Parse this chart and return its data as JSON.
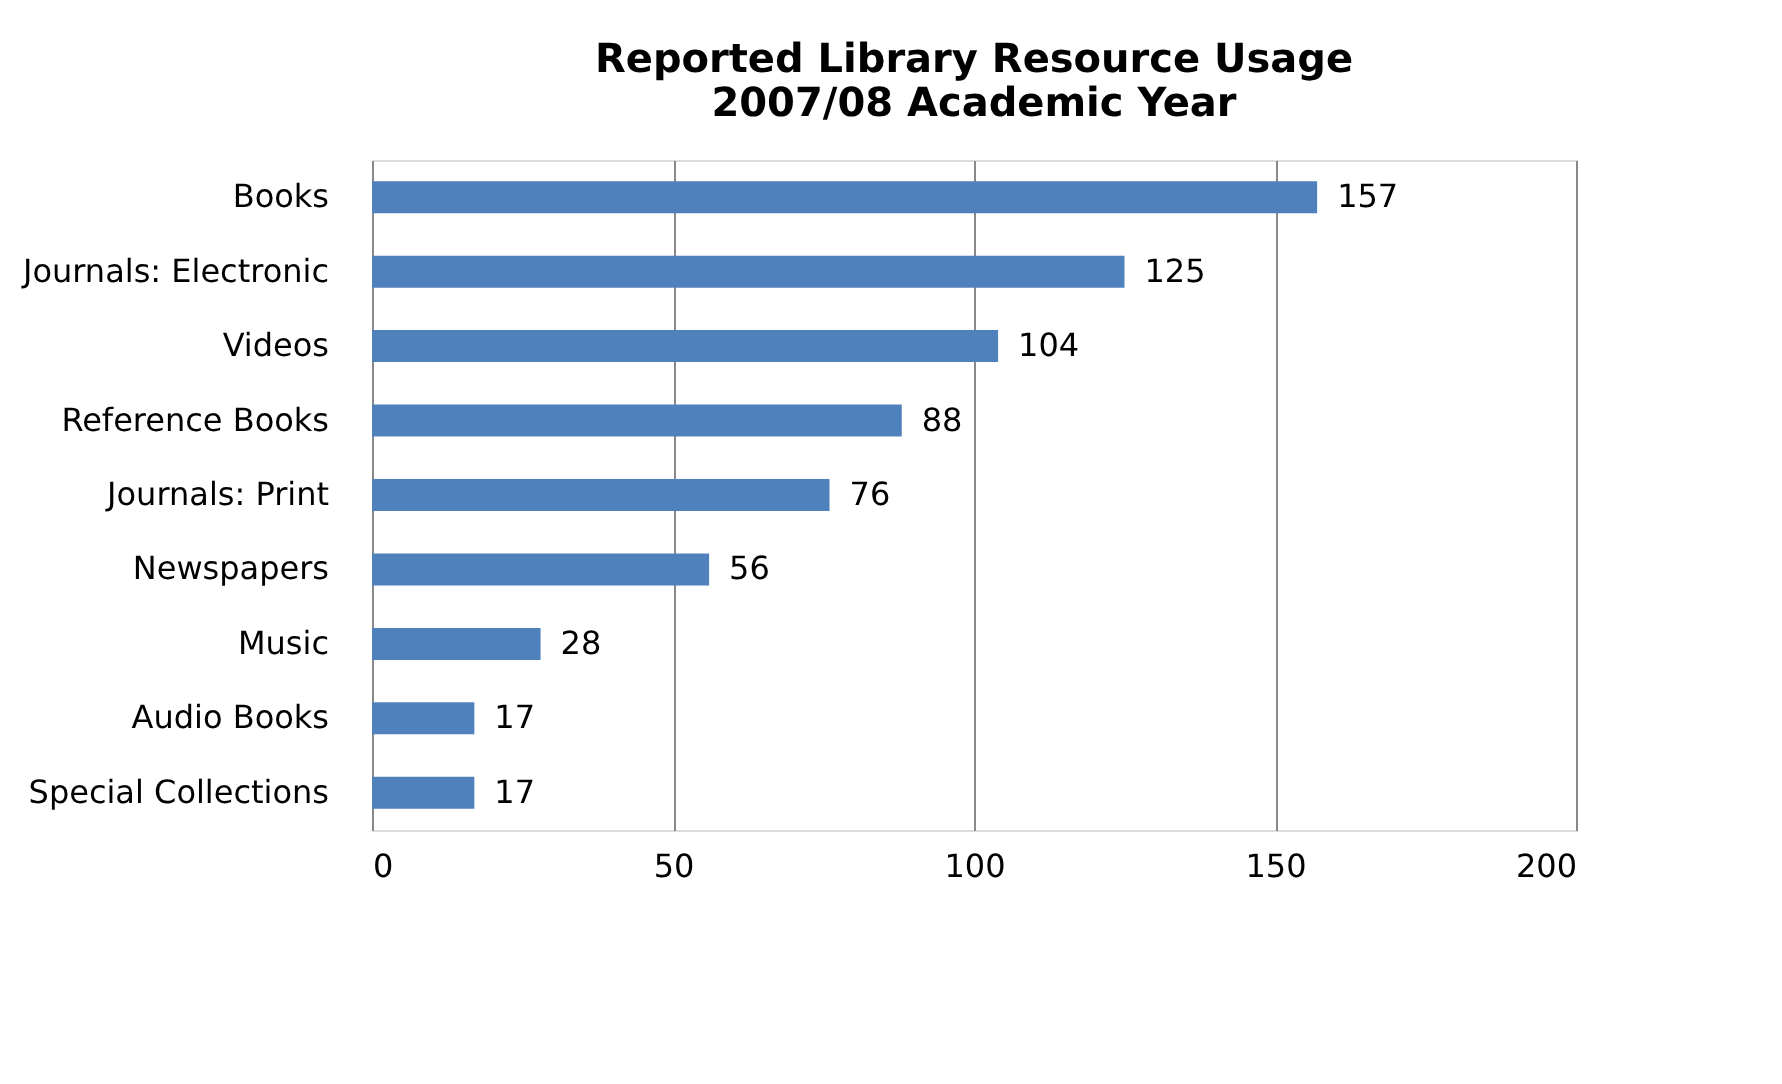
{
  "chart_data": {
    "type": "bar",
    "orientation": "horizontal",
    "title": [
      "Reported  Library Resource Usage",
      "2007/08 Academic Year"
    ],
    "categories": [
      "Books",
      "Journals: Electronic",
      "Videos",
      "Reference Books",
      "Journals: Print",
      "Newspapers",
      "Music",
      "Audio Books",
      "Special Collections"
    ],
    "values": [
      157,
      125,
      104,
      88,
      76,
      56,
      28,
      17,
      17
    ],
    "color": "#4f81bd",
    "xlim": [
      0,
      200
    ],
    "xticks": [
      0,
      50,
      100,
      150,
      200
    ],
    "grid": "x",
    "data_labels": true
  }
}
